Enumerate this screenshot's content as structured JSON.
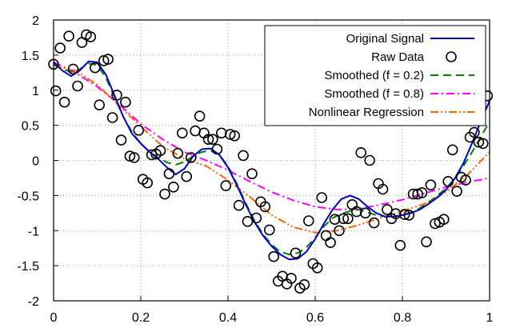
{
  "chart_data": {
    "type": "line",
    "title": "",
    "xlabel": "",
    "ylabel": "",
    "xlim": [
      0,
      1
    ],
    "ylim": [
      -2,
      2
    ],
    "x_ticks": [
      0,
      0.2,
      0.4,
      0.6,
      0.8,
      1
    ],
    "y_ticks": [
      -2,
      -1.5,
      -1,
      -0.5,
      0,
      0.5,
      1,
      1.5,
      2
    ],
    "x_tick_labels": [
      "0",
      "0.2",
      "0.4",
      "0.6",
      "0.8",
      "1"
    ],
    "y_tick_labels": [
      "-2",
      "-1.5",
      "-1",
      "-0.5",
      "0",
      "0.5",
      "1",
      "1.5",
      "2"
    ],
    "grid": true,
    "legend_position": "top-right",
    "series": [
      {
        "name": "Original Signal",
        "style": "solid",
        "color": "#0000cc",
        "x": [
          0,
          0.02,
          0.04,
          0.06,
          0.08,
          0.1,
          0.12,
          0.14,
          0.16,
          0.18,
          0.2,
          0.22,
          0.24,
          0.26,
          0.28,
          0.3,
          0.32,
          0.34,
          0.36,
          0.38,
          0.4,
          0.42,
          0.44,
          0.46,
          0.48,
          0.5,
          0.52,
          0.54,
          0.56,
          0.58,
          0.6,
          0.62,
          0.64,
          0.66,
          0.68,
          0.7,
          0.72,
          0.74,
          0.76,
          0.78,
          0.8,
          0.82,
          0.84,
          0.86,
          0.88,
          0.9,
          0.92,
          0.94,
          0.96,
          0.98,
          1
        ],
        "y": [
          1.4,
          1.28,
          1.2,
          1.28,
          1.41,
          1.4,
          1.22,
          0.92,
          0.62,
          0.38,
          0.24,
          0.12,
          0.02,
          -0.1,
          -0.2,
          -0.12,
          0.06,
          0.16,
          0.17,
          0.08,
          -0.1,
          -0.35,
          -0.62,
          -0.87,
          -1.07,
          -1.22,
          -1.34,
          -1.41,
          -1.4,
          -1.3,
          -1.12,
          -0.9,
          -0.7,
          -0.55,
          -0.5,
          -0.55,
          -0.66,
          -0.75,
          -0.8,
          -0.8,
          -0.78,
          -0.75,
          -0.7,
          -0.62,
          -0.53,
          -0.42,
          -0.26,
          -0.04,
          0.25,
          0.56,
          0.85
        ]
      },
      {
        "name": "Raw Data",
        "style": "markers",
        "color": "#000000",
        "x": [
          0.0,
          0.005,
          0.015,
          0.025,
          0.035,
          0.045,
          0.055,
          0.065,
          0.075,
          0.085,
          0.095,
          0.105,
          0.115,
          0.125,
          0.135,
          0.145,
          0.155,
          0.165,
          0.175,
          0.185,
          0.195,
          0.205,
          0.215,
          0.225,
          0.235,
          0.245,
          0.255,
          0.265,
          0.275,
          0.285,
          0.295,
          0.305,
          0.315,
          0.325,
          0.335,
          0.345,
          0.355,
          0.365,
          0.375,
          0.385,
          0.395,
          0.405,
          0.415,
          0.425,
          0.435,
          0.445,
          0.455,
          0.465,
          0.475,
          0.485,
          0.495,
          0.505,
          0.515,
          0.525,
          0.535,
          0.545,
          0.555,
          0.565,
          0.575,
          0.585,
          0.595,
          0.605,
          0.615,
          0.625,
          0.635,
          0.645,
          0.655,
          0.665,
          0.675,
          0.685,
          0.695,
          0.705,
          0.715,
          0.725,
          0.735,
          0.745,
          0.755,
          0.765,
          0.775,
          0.785,
          0.795,
          0.805,
          0.815,
          0.825,
          0.835,
          0.845,
          0.855,
          0.865,
          0.875,
          0.885,
          0.895,
          0.905,
          0.915,
          0.925,
          0.935,
          0.945,
          0.955,
          0.965,
          0.975,
          0.985,
          0.995
        ],
        "y": [
          1.37,
          0.99,
          1.6,
          0.83,
          1.77,
          1.3,
          1.06,
          1.68,
          1.79,
          1.76,
          1.32,
          0.79,
          1.42,
          1.44,
          0.61,
          0.93,
          0.29,
          0.83,
          0.06,
          0.04,
          0.43,
          -0.27,
          -0.32,
          0.08,
          0.09,
          0.14,
          -0.48,
          -0.19,
          -0.38,
          0.1,
          0.39,
          -0.23,
          0.04,
          0.42,
          0.63,
          0.39,
          0.3,
          0.3,
          0.16,
          0.39,
          -0.36,
          0.37,
          0.35,
          -0.64,
          0.07,
          -0.87,
          -0.19,
          -0.82,
          -0.59,
          -0.66,
          -0.99,
          -1.37,
          -1.72,
          -1.65,
          -1.76,
          -1.68,
          -1.32,
          -1.82,
          -1.77,
          -0.86,
          -1.47,
          -1.53,
          -0.53,
          -1.07,
          -1.17,
          -0.84,
          -1.0,
          -0.83,
          -0.83,
          -0.63,
          -0.73,
          0.11,
          -0.75,
          0.0,
          -0.89,
          -0.33,
          -0.41,
          -0.7,
          -0.83,
          -0.76,
          -1.21,
          -0.77,
          -0.78,
          -0.48,
          -0.48,
          -0.46,
          -1.16,
          -0.35,
          -0.9,
          -0.88,
          -0.84,
          -0.3,
          0.15,
          -0.44,
          -0.24,
          -0.28,
          0.33,
          0.4,
          0.26,
          0.24,
          0.92
        ]
      },
      {
        "name": "Smoothed (f = 0.2)",
        "style": "dashed",
        "color": "#008000",
        "x": [
          0,
          0.02,
          0.04,
          0.06,
          0.08,
          0.1,
          0.12,
          0.14,
          0.16,
          0.18,
          0.2,
          0.22,
          0.24,
          0.26,
          0.28,
          0.3,
          0.32,
          0.34,
          0.36,
          0.38,
          0.4,
          0.42,
          0.44,
          0.46,
          0.48,
          0.5,
          0.52,
          0.54,
          0.56,
          0.58,
          0.6,
          0.62,
          0.64,
          0.66,
          0.68,
          0.7,
          0.72,
          0.74,
          0.76,
          0.78,
          0.8,
          0.82,
          0.84,
          0.86,
          0.88,
          0.9,
          0.92,
          0.94,
          0.96,
          0.98,
          1
        ],
        "y": [
          1.37,
          1.3,
          1.26,
          1.3,
          1.38,
          1.36,
          1.18,
          0.9,
          0.62,
          0.4,
          0.24,
          0.12,
          0.04,
          -0.03,
          -0.06,
          -0.02,
          0.06,
          0.12,
          0.14,
          0.08,
          -0.08,
          -0.33,
          -0.6,
          -0.85,
          -1.05,
          -1.2,
          -1.3,
          -1.34,
          -1.32,
          -1.24,
          -1.1,
          -0.94,
          -0.82,
          -0.76,
          -0.72,
          -0.7,
          -0.74,
          -0.78,
          -0.8,
          -0.8,
          -0.78,
          -0.74,
          -0.68,
          -0.6,
          -0.5,
          -0.4,
          -0.26,
          -0.08,
          0.12,
          0.34,
          0.55
        ]
      },
      {
        "name": "Smoothed (f = 0.8)",
        "style": "dashdot",
        "color": "#ff00ff",
        "x": [
          0,
          0.05,
          0.1,
          0.15,
          0.2,
          0.25,
          0.3,
          0.35,
          0.4,
          0.45,
          0.5,
          0.55,
          0.6,
          0.65,
          0.7,
          0.75,
          0.8,
          0.85,
          0.9,
          0.95,
          1
        ],
        "y": [
          1.4,
          1.25,
          1.05,
          0.8,
          0.52,
          0.3,
          0.12,
          0.0,
          -0.14,
          -0.3,
          -0.45,
          -0.57,
          -0.66,
          -0.7,
          -0.69,
          -0.63,
          -0.56,
          -0.47,
          -0.38,
          -0.31,
          -0.25
        ]
      },
      {
        "name": "Nonlinear Regression",
        "style": "dashdotdot",
        "color": "#ff6600",
        "x": [
          0,
          0.05,
          0.1,
          0.15,
          0.2,
          0.25,
          0.3,
          0.35,
          0.4,
          0.45,
          0.5,
          0.55,
          0.6,
          0.65,
          0.7,
          0.75,
          0.8,
          0.85,
          0.9,
          0.95,
          1
        ],
        "y": [
          1.35,
          1.28,
          1.08,
          0.78,
          0.48,
          0.2,
          0.02,
          -0.08,
          -0.28,
          -0.52,
          -0.78,
          -0.95,
          -1.03,
          -1.0,
          -0.92,
          -0.82,
          -0.72,
          -0.62,
          -0.45,
          -0.2,
          0.12
        ]
      }
    ]
  }
}
